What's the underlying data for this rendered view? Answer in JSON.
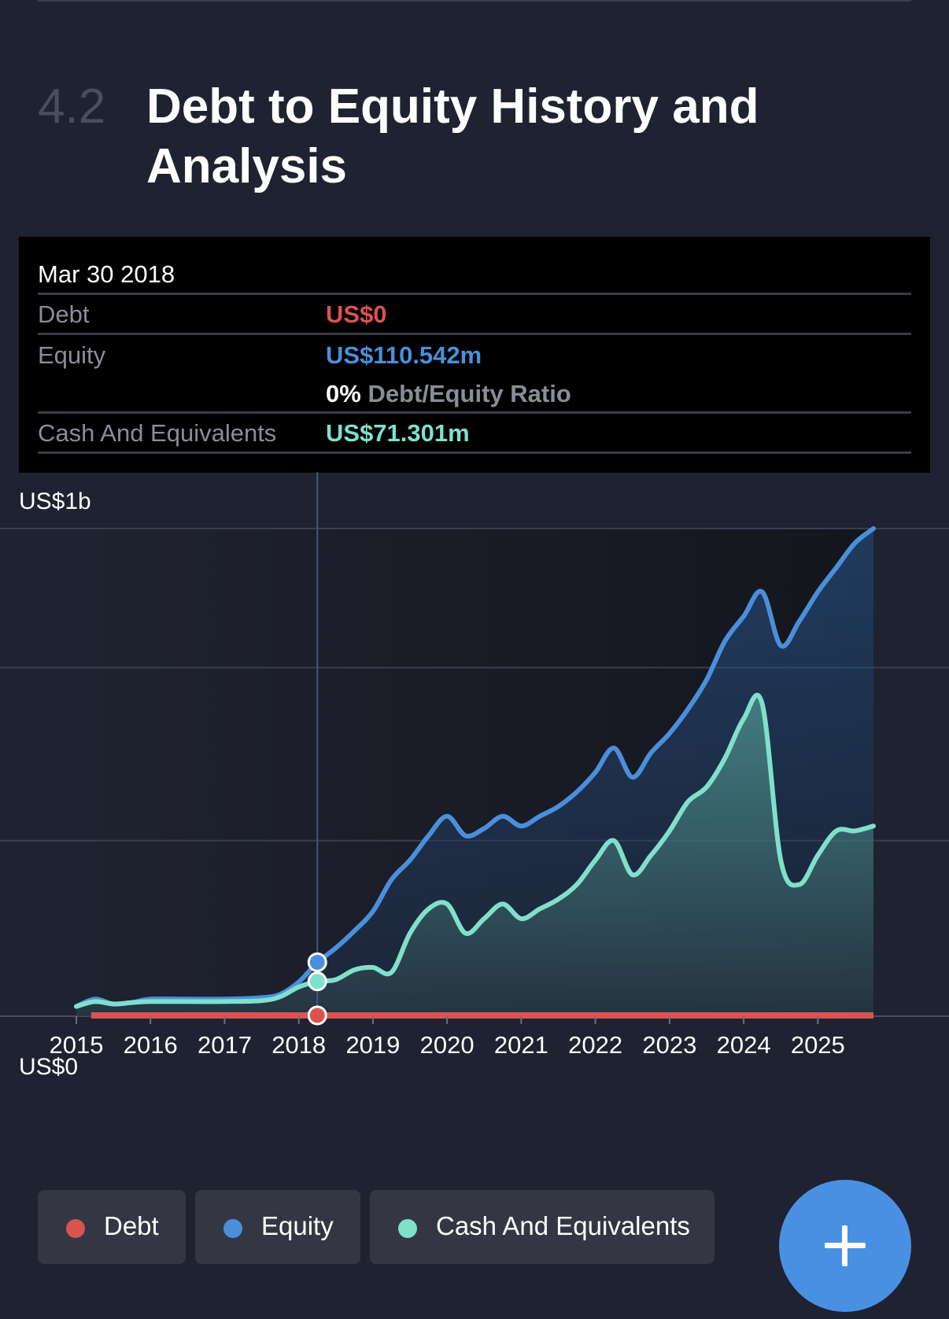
{
  "section": {
    "number": "4.2",
    "title": "Debt to Equity History and Analysis"
  },
  "tooltip": {
    "date": "Mar 30 2018",
    "debt_label": "Debt",
    "debt_value": "US$0",
    "equity_label": "Equity",
    "equity_value": "US$110.542m",
    "ratio_value": "0%",
    "ratio_label": "Debt/Equity Ratio",
    "cash_label": "Cash And Equivalents",
    "cash_value": "US$71.301m"
  },
  "colors": {
    "debt": "#d9534f",
    "equity": "#4a8fdb",
    "cash": "#7fe0cc",
    "background": "#1f2230",
    "fab": "#4a90e2"
  },
  "chart_data": {
    "type": "area",
    "ylabel_top": "US$1b",
    "ylabel_bottom": "US$0",
    "ylim": [
      0,
      1000
    ],
    "xlim": [
      2015,
      2025.75
    ],
    "x_ticks": [
      2015,
      2016,
      2017,
      2018,
      2019,
      2020,
      2021,
      2022,
      2023,
      2024,
      2025
    ],
    "x_tick_labels": [
      "2015",
      "2016",
      "2017",
      "2018",
      "2019",
      "2020",
      "2021",
      "2022",
      "2023",
      "2024",
      "2025"
    ],
    "grid": true,
    "crosshair_x": 2018.25,
    "series": [
      {
        "name": "Debt",
        "color_key": "debt",
        "points": [
          [
            2015.2,
            0
          ],
          [
            2025.75,
            0
          ]
        ]
      },
      {
        "name": "Equity",
        "color_key": "equity",
        "points": [
          [
            2015,
            20
          ],
          [
            2015.25,
            35
          ],
          [
            2015.5,
            25
          ],
          [
            2015.75,
            28
          ],
          [
            2016,
            35
          ],
          [
            2016.5,
            35
          ],
          [
            2017,
            35
          ],
          [
            2017.5,
            38
          ],
          [
            2017.75,
            45
          ],
          [
            2018,
            70
          ],
          [
            2018.25,
            110
          ],
          [
            2018.5,
            140
          ],
          [
            2018.75,
            175
          ],
          [
            2019,
            215
          ],
          [
            2019.25,
            280
          ],
          [
            2019.5,
            320
          ],
          [
            2019.75,
            370
          ],
          [
            2020,
            410
          ],
          [
            2020.25,
            370
          ],
          [
            2020.5,
            385
          ],
          [
            2020.75,
            410
          ],
          [
            2021,
            390
          ],
          [
            2021.25,
            410
          ],
          [
            2021.5,
            430
          ],
          [
            2021.75,
            460
          ],
          [
            2022,
            500
          ],
          [
            2022.25,
            550
          ],
          [
            2022.5,
            490
          ],
          [
            2022.75,
            540
          ],
          [
            2023,
            580
          ],
          [
            2023.25,
            630
          ],
          [
            2023.5,
            690
          ],
          [
            2023.75,
            770
          ],
          [
            2024,
            820
          ],
          [
            2024.25,
            870
          ],
          [
            2024.5,
            760
          ],
          [
            2024.75,
            810
          ],
          [
            2025,
            870
          ],
          [
            2025.25,
            920
          ],
          [
            2025.5,
            970
          ],
          [
            2025.75,
            1000
          ]
        ]
      },
      {
        "name": "Cash And Equivalents",
        "color_key": "cash",
        "points": [
          [
            2015,
            20
          ],
          [
            2015.25,
            30
          ],
          [
            2015.5,
            25
          ],
          [
            2015.75,
            28
          ],
          [
            2016,
            30
          ],
          [
            2016.5,
            30
          ],
          [
            2017,
            30
          ],
          [
            2017.5,
            32
          ],
          [
            2017.75,
            40
          ],
          [
            2018,
            60
          ],
          [
            2018.25,
            71
          ],
          [
            2018.5,
            75
          ],
          [
            2018.75,
            95
          ],
          [
            2019,
            100
          ],
          [
            2019.25,
            90
          ],
          [
            2019.5,
            170
          ],
          [
            2019.75,
            220
          ],
          [
            2020,
            230
          ],
          [
            2020.25,
            170
          ],
          [
            2020.5,
            200
          ],
          [
            2020.75,
            230
          ],
          [
            2021,
            200
          ],
          [
            2021.25,
            220
          ],
          [
            2021.5,
            240
          ],
          [
            2021.75,
            270
          ],
          [
            2022,
            320
          ],
          [
            2022.25,
            360
          ],
          [
            2022.5,
            290
          ],
          [
            2022.75,
            330
          ],
          [
            2023,
            380
          ],
          [
            2023.25,
            440
          ],
          [
            2023.5,
            470
          ],
          [
            2023.75,
            530
          ],
          [
            2024,
            610
          ],
          [
            2024.25,
            640
          ],
          [
            2024.5,
            320
          ],
          [
            2024.75,
            270
          ],
          [
            2025,
            330
          ],
          [
            2025.25,
            380
          ],
          [
            2025.5,
            380
          ],
          [
            2025.75,
            390
          ]
        ]
      }
    ],
    "highlight": {
      "x": 2018.25,
      "equity": 110.542,
      "cash": 71.301,
      "debt": 0
    }
  },
  "legend": {
    "debt": "Debt",
    "equity": "Equity",
    "cash": "Cash And Equivalents"
  },
  "fab": {
    "icon": "plus-icon"
  }
}
